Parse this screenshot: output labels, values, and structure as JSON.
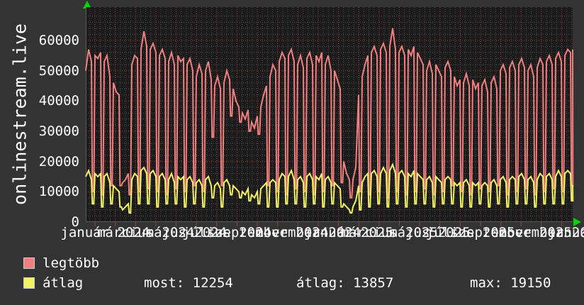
{
  "page": {
    "background": "#333333"
  },
  "left_title": "onlinestream.live",
  "colors": {
    "plot_background": "#1b1b1b",
    "grid_minor": "#4f4f4f",
    "grid_major": "#a03c3c",
    "axis_border": "#5a5a5a",
    "arrow_green": "#00d400",
    "text": "#ffffff",
    "series_legtobb": "#f08080",
    "series_atlag": "#f2f266"
  },
  "icons": {
    "y_axis_arrow": "green-up-arrow",
    "x_axis_arrow": "green-right-arrow"
  },
  "chart_data": {
    "type": "line",
    "title": "onlinestream.live",
    "grid": "dotted minor + red dotted major",
    "legend_position": "bottom-left",
    "ylim": [
      0,
      71000
    ],
    "y_ticks": [
      {
        "label": "0",
        "value": 0
      },
      {
        "label": "10000",
        "value": 10000
      },
      {
        "label": "20000",
        "value": 20000
      },
      {
        "label": "30000",
        "value": 30000
      },
      {
        "label": "40000",
        "value": 40000
      },
      {
        "label": "50000",
        "value": 50000
      },
      {
        "label": "60000",
        "value": 60000
      }
    ],
    "x_axis": {
      "months_shown": 24,
      "labels_every_months": 2,
      "labels": [
        "január 2024",
        "március 2024",
        "május 2024",
        "július 2024",
        "szeptember 2024",
        "november 2024",
        "január 2025",
        "március 2025",
        "május 2025",
        "július 2025",
        "szeptember 2025",
        "november 2025",
        "január 2026"
      ]
    },
    "value_multiplier": 1000,
    "cycle_note": "each cycle = ~2 weeks of data, samples [start,mid,end,dip] in thousands",
    "series": [
      {
        "name": "legtöbb",
        "color": "#f08080",
        "end": 57,
        "cycles": [
          [
            50,
            57,
            53,
            10
          ],
          [
            55,
            54,
            56,
            9
          ],
          [
            53,
            55,
            48,
            12
          ],
          [
            46,
            43,
            42,
            12
          ],
          [
            13,
            14,
            16,
            9
          ],
          [
            52,
            55,
            54,
            10
          ],
          [
            57,
            63,
            58,
            11
          ],
          [
            57,
            59,
            56,
            10
          ],
          [
            55,
            57,
            54,
            9
          ],
          [
            53,
            56,
            52,
            11
          ],
          [
            55,
            53,
            54,
            10
          ],
          [
            52,
            54,
            50,
            12
          ],
          [
            48,
            52,
            49,
            10
          ],
          [
            50,
            53,
            47,
            28
          ],
          [
            45,
            48,
            44,
            12
          ],
          [
            46,
            50,
            47,
            35
          ],
          [
            44,
            40,
            38,
            33
          ],
          [
            36,
            34,
            37,
            30
          ],
          [
            33,
            31,
            35,
            29
          ],
          [
            38,
            42,
            45,
            12
          ],
          [
            48,
            52,
            50,
            10
          ],
          [
            53,
            56,
            54,
            9
          ],
          [
            55,
            57,
            53,
            11
          ],
          [
            52,
            55,
            51,
            10
          ],
          [
            54,
            56,
            52,
            9
          ],
          [
            55,
            53,
            56,
            10
          ],
          [
            52,
            55,
            50,
            12
          ],
          [
            50,
            47,
            44,
            13
          ],
          [
            20,
            16,
            14,
            8
          ],
          [
            14,
            18,
            42,
            10
          ],
          [
            48,
            52,
            55,
            9
          ],
          [
            56,
            58,
            55,
            10
          ],
          [
            57,
            59,
            56,
            8
          ],
          [
            58,
            64,
            57,
            10
          ],
          [
            56,
            58,
            55,
            9
          ],
          [
            57,
            55,
            58,
            10
          ],
          [
            56,
            54,
            52,
            11
          ],
          [
            50,
            53,
            49,
            9
          ],
          [
            52,
            50,
            48,
            10
          ],
          [
            51,
            53,
            50,
            12
          ],
          [
            48,
            45,
            47,
            10
          ],
          [
            46,
            49,
            45,
            9
          ],
          [
            47,
            44,
            46,
            11
          ],
          [
            45,
            47,
            43,
            10
          ],
          [
            46,
            48,
            44,
            12
          ],
          [
            50,
            52,
            49,
            9
          ],
          [
            51,
            53,
            50,
            10
          ],
          [
            52,
            54,
            51,
            11
          ],
          [
            50,
            52,
            48,
            9
          ],
          [
            51,
            54,
            52,
            10
          ],
          [
            53,
            55,
            52,
            11
          ],
          [
            54,
            56,
            53,
            10
          ],
          [
            55,
            57,
            56,
            12
          ]
        ]
      },
      {
        "name": "átlag",
        "color": "#f2f266",
        "end": 12.25,
        "cycles": [
          [
            15,
            17,
            14,
            6
          ],
          [
            16,
            15,
            16,
            5
          ],
          [
            15,
            16,
            13,
            6
          ],
          [
            12,
            11,
            10,
            5
          ],
          [
            4,
            5,
            6,
            3
          ],
          [
            14,
            16,
            15,
            6
          ],
          [
            17,
            18,
            16,
            6
          ],
          [
            16,
            17,
            15,
            5
          ],
          [
            15,
            16,
            14,
            6
          ],
          [
            14,
            16,
            13,
            6
          ],
          [
            15,
            14,
            15,
            5
          ],
          [
            14,
            15,
            13,
            6
          ],
          [
            13,
            14,
            12,
            5
          ],
          [
            14,
            15,
            12,
            8
          ],
          [
            12,
            13,
            11,
            5
          ],
          [
            13,
            14,
            12,
            9
          ],
          [
            12,
            11,
            10,
            8
          ],
          [
            10,
            9,
            11,
            7
          ],
          [
            9,
            8,
            10,
            6
          ],
          [
            11,
            12,
            13,
            5
          ],
          [
            13,
            14,
            13,
            5
          ],
          [
            14,
            16,
            15,
            6
          ],
          [
            15,
            17,
            14,
            6
          ],
          [
            14,
            15,
            13,
            5
          ],
          [
            15,
            16,
            14,
            6
          ],
          [
            15,
            14,
            16,
            5
          ],
          [
            14,
            15,
            13,
            6
          ],
          [
            13,
            12,
            11,
            5
          ],
          [
            6,
            5,
            4,
            3
          ],
          [
            5,
            7,
            12,
            4
          ],
          [
            13,
            15,
            16,
            5
          ],
          [
            16,
            17,
            15,
            6
          ],
          [
            16,
            18,
            16,
            5
          ],
          [
            17,
            19,
            16,
            6
          ],
          [
            16,
            17,
            15,
            5
          ],
          [
            16,
            15,
            17,
            6
          ],
          [
            16,
            15,
            14,
            6
          ],
          [
            14,
            15,
            13,
            5
          ],
          [
            15,
            14,
            13,
            6
          ],
          [
            14,
            15,
            14,
            6
          ],
          [
            13,
            12,
            13,
            5
          ],
          [
            13,
            14,
            12,
            5
          ],
          [
            13,
            12,
            13,
            6
          ],
          [
            12,
            13,
            12,
            5
          ],
          [
            13,
            14,
            12,
            6
          ],
          [
            14,
            15,
            13,
            5
          ],
          [
            14,
            15,
            14,
            6
          ],
          [
            15,
            16,
            14,
            6
          ],
          [
            14,
            15,
            13,
            5
          ],
          [
            14,
            16,
            15,
            6
          ],
          [
            15,
            16,
            14,
            6
          ],
          [
            15,
            17,
            15,
            6
          ],
          [
            16,
            17,
            16,
            7
          ]
        ]
      }
    ]
  },
  "legend": {
    "items": [
      {
        "label": "legtöbb",
        "color": "#f08080"
      },
      {
        "label": "átlag",
        "color": "#f2f266"
      }
    ],
    "stats": [
      {
        "text": "most: 12254"
      },
      {
        "text": "átlag: 13857"
      },
      {
        "text": "max: 19150"
      }
    ]
  }
}
